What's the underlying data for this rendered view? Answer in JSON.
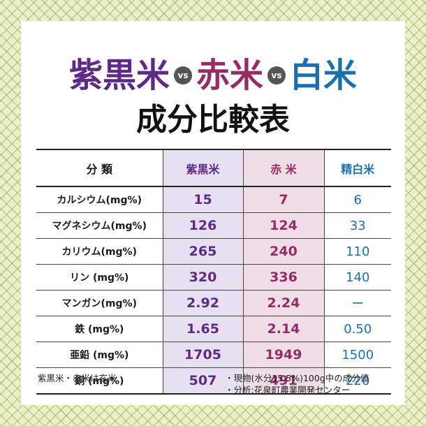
{
  "title": {
    "rice1": "紫黒米",
    "vs1": "vs",
    "rice2": "赤米",
    "vs2": "vs",
    "rice3": "白米",
    "line2": "成分比較表"
  },
  "colors": {
    "purple": "#5e2a86",
    "red": "#962b66",
    "blue": "#1b6fae",
    "purple_bg": "#e7e0f1",
    "red_bg": "#efdde8"
  },
  "table": {
    "headers": [
      "分 類",
      "紫黒米",
      "赤 米",
      "精白米"
    ],
    "rows": [
      {
        "label": "カルシウム(mg%)",
        "purple": "15",
        "red": "7",
        "white": "6"
      },
      {
        "label": "マグネシウム(mg%)",
        "purple": "126",
        "red": "124",
        "white": "33"
      },
      {
        "label": "カリウム(mg%)",
        "purple": "265",
        "red": "240",
        "white": "110"
      },
      {
        "label": "リン (mg%)",
        "purple": "320",
        "red": "336",
        "white": "140"
      },
      {
        "label": "マンガン(mg%)",
        "purple": "2.92",
        "red": "2.24",
        "white": "ー"
      },
      {
        "label": "鉄 (mg%)",
        "purple": "1.65",
        "red": "2.14",
        "white": "0.50"
      },
      {
        "label": "亜鉛 (mg%)",
        "purple": "1705",
        "red": "1949",
        "white": "1500"
      },
      {
        "label": "銅 (mg%)",
        "purple": "507",
        "red": "491",
        "white": "220"
      }
    ]
  },
  "footer": {
    "left": "紫黒米・赤米は玄米",
    "right_line1": "・現物(水分15.5%)100g中の成分値",
    "right_line2": "・分析:花泉町農業開発センター"
  }
}
